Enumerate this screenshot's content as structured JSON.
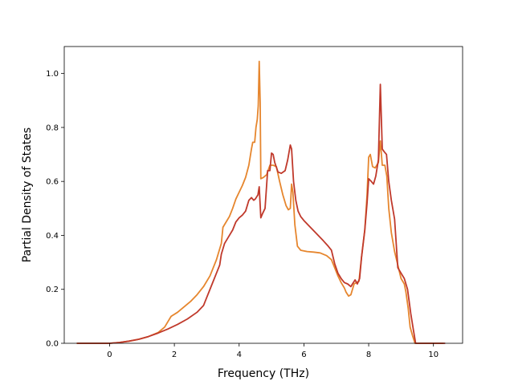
{
  "chart_data": {
    "type": "line",
    "title": "",
    "xlabel": "Frequency (THz)",
    "ylabel": "Partial Density of States",
    "xlim": [
      -1.4,
      10.9
    ],
    "ylim": [
      0.0,
      1.1
    ],
    "xticks": [
      0,
      2,
      4,
      6,
      8,
      10
    ],
    "xtick_labels": [
      "0",
      "2",
      "4",
      "6",
      "8",
      "10"
    ],
    "yticks": [
      0.0,
      0.2,
      0.4,
      0.6,
      0.8,
      1.0
    ],
    "ytick_labels": [
      "0.0",
      "0.2",
      "0.4",
      "0.6",
      "0.8",
      "1.0"
    ],
    "grid": false,
    "legend": "none",
    "series": [
      {
        "color": "#e6862e",
        "points": [
          [
            -1.0,
            0.0
          ],
          [
            -0.5,
            0.0
          ],
          [
            0.0,
            0.0
          ],
          [
            0.3,
            0.003
          ],
          [
            0.6,
            0.008
          ],
          [
            0.9,
            0.015
          ],
          [
            1.2,
            0.025
          ],
          [
            1.5,
            0.04
          ],
          [
            1.7,
            0.06
          ],
          [
            1.8,
            0.08
          ],
          [
            1.9,
            0.1
          ],
          [
            2.1,
            0.115
          ],
          [
            2.3,
            0.135
          ],
          [
            2.5,
            0.155
          ],
          [
            2.7,
            0.18
          ],
          [
            2.9,
            0.21
          ],
          [
            3.1,
            0.25
          ],
          [
            3.3,
            0.31
          ],
          [
            3.45,
            0.37
          ],
          [
            3.5,
            0.43
          ],
          [
            3.6,
            0.45
          ],
          [
            3.7,
            0.47
          ],
          [
            3.8,
            0.5
          ],
          [
            3.9,
            0.535
          ],
          [
            4.0,
            0.56
          ],
          [
            4.1,
            0.585
          ],
          [
            4.2,
            0.615
          ],
          [
            4.3,
            0.66
          ],
          [
            4.38,
            0.72
          ],
          [
            4.42,
            0.745
          ],
          [
            4.48,
            0.745
          ],
          [
            4.52,
            0.8
          ],
          [
            4.56,
            0.83
          ],
          [
            4.59,
            0.88
          ],
          [
            4.62,
            1.045
          ],
          [
            4.65,
            0.89
          ],
          [
            4.67,
            0.61
          ],
          [
            4.75,
            0.615
          ],
          [
            4.85,
            0.625
          ],
          [
            4.95,
            0.66
          ],
          [
            5.05,
            0.66
          ],
          [
            5.15,
            0.655
          ],
          [
            5.25,
            0.6
          ],
          [
            5.35,
            0.55
          ],
          [
            5.45,
            0.51
          ],
          [
            5.52,
            0.495
          ],
          [
            5.58,
            0.5
          ],
          [
            5.62,
            0.59
          ],
          [
            5.66,
            0.56
          ],
          [
            5.72,
            0.44
          ],
          [
            5.8,
            0.36
          ],
          [
            5.9,
            0.345
          ],
          [
            6.1,
            0.34
          ],
          [
            6.3,
            0.338
          ],
          [
            6.5,
            0.335
          ],
          [
            6.7,
            0.325
          ],
          [
            6.85,
            0.31
          ],
          [
            6.95,
            0.28
          ],
          [
            7.05,
            0.25
          ],
          [
            7.15,
            0.225
          ],
          [
            7.25,
            0.205
          ],
          [
            7.3,
            0.19
          ],
          [
            7.38,
            0.175
          ],
          [
            7.45,
            0.18
          ],
          [
            7.55,
            0.22
          ],
          [
            7.62,
            0.225
          ],
          [
            7.7,
            0.23
          ],
          [
            7.78,
            0.32
          ],
          [
            7.88,
            0.42
          ],
          [
            7.95,
            0.55
          ],
          [
            8.0,
            0.69
          ],
          [
            8.05,
            0.7
          ],
          [
            8.12,
            0.655
          ],
          [
            8.2,
            0.65
          ],
          [
            8.3,
            0.67
          ],
          [
            8.36,
            0.75
          ],
          [
            8.42,
            0.66
          ],
          [
            8.5,
            0.66
          ],
          [
            8.56,
            0.62
          ],
          [
            8.62,
            0.5
          ],
          [
            8.7,
            0.41
          ],
          [
            8.8,
            0.34
          ],
          [
            8.9,
            0.29
          ],
          [
            9.0,
            0.24
          ],
          [
            9.1,
            0.22
          ],
          [
            9.15,
            0.19
          ],
          [
            9.22,
            0.13
          ],
          [
            9.28,
            0.06
          ],
          [
            9.35,
            0.03
          ],
          [
            9.43,
            0.0
          ],
          [
            9.8,
            0.0
          ],
          [
            10.3,
            0.0
          ]
        ]
      },
      {
        "color": "#c0392b",
        "points": [
          [
            -1.0,
            0.0
          ],
          [
            -0.5,
            0.0
          ],
          [
            0.0,
            0.0
          ],
          [
            0.3,
            0.003
          ],
          [
            0.6,
            0.008
          ],
          [
            0.9,
            0.015
          ],
          [
            1.2,
            0.025
          ],
          [
            1.5,
            0.038
          ],
          [
            1.8,
            0.053
          ],
          [
            2.1,
            0.07
          ],
          [
            2.4,
            0.09
          ],
          [
            2.7,
            0.115
          ],
          [
            2.9,
            0.14
          ],
          [
            3.0,
            0.17
          ],
          [
            3.1,
            0.2
          ],
          [
            3.2,
            0.23
          ],
          [
            3.3,
            0.26
          ],
          [
            3.4,
            0.29
          ],
          [
            3.45,
            0.33
          ],
          [
            3.55,
            0.37
          ],
          [
            3.7,
            0.4
          ],
          [
            3.8,
            0.42
          ],
          [
            3.9,
            0.45
          ],
          [
            4.0,
            0.465
          ],
          [
            4.1,
            0.475
          ],
          [
            4.2,
            0.49
          ],
          [
            4.3,
            0.53
          ],
          [
            4.38,
            0.54
          ],
          [
            4.45,
            0.53
          ],
          [
            4.5,
            0.535
          ],
          [
            4.58,
            0.55
          ],
          [
            4.62,
            0.58
          ],
          [
            4.67,
            0.465
          ],
          [
            4.72,
            0.48
          ],
          [
            4.8,
            0.5
          ],
          [
            4.88,
            0.64
          ],
          [
            4.95,
            0.64
          ],
          [
            5.0,
            0.705
          ],
          [
            5.05,
            0.7
          ],
          [
            5.1,
            0.67
          ],
          [
            5.2,
            0.635
          ],
          [
            5.3,
            0.63
          ],
          [
            5.42,
            0.64
          ],
          [
            5.5,
            0.68
          ],
          [
            5.58,
            0.735
          ],
          [
            5.62,
            0.72
          ],
          [
            5.68,
            0.6
          ],
          [
            5.75,
            0.53
          ],
          [
            5.82,
            0.49
          ],
          [
            5.9,
            0.47
          ],
          [
            6.0,
            0.455
          ],
          [
            6.2,
            0.43
          ],
          [
            6.4,
            0.405
          ],
          [
            6.6,
            0.38
          ],
          [
            6.75,
            0.36
          ],
          [
            6.85,
            0.345
          ],
          [
            6.95,
            0.295
          ],
          [
            7.05,
            0.26
          ],
          [
            7.15,
            0.24
          ],
          [
            7.25,
            0.225
          ],
          [
            7.35,
            0.22
          ],
          [
            7.45,
            0.21
          ],
          [
            7.5,
            0.22
          ],
          [
            7.58,
            0.235
          ],
          [
            7.65,
            0.22
          ],
          [
            7.72,
            0.24
          ],
          [
            7.78,
            0.32
          ],
          [
            7.88,
            0.42
          ],
          [
            7.95,
            0.52
          ],
          [
            8.0,
            0.61
          ],
          [
            8.08,
            0.6
          ],
          [
            8.15,
            0.59
          ],
          [
            8.22,
            0.62
          ],
          [
            8.3,
            0.68
          ],
          [
            8.36,
            0.96
          ],
          [
            8.42,
            0.72
          ],
          [
            8.48,
            0.71
          ],
          [
            8.55,
            0.7
          ],
          [
            8.62,
            0.6
          ],
          [
            8.7,
            0.53
          ],
          [
            8.8,
            0.46
          ],
          [
            8.9,
            0.28
          ],
          [
            9.0,
            0.26
          ],
          [
            9.1,
            0.24
          ],
          [
            9.2,
            0.2
          ],
          [
            9.3,
            0.11
          ],
          [
            9.38,
            0.05
          ],
          [
            9.45,
            0.0
          ],
          [
            9.8,
            0.0
          ],
          [
            10.35,
            0.0
          ]
        ]
      }
    ]
  }
}
